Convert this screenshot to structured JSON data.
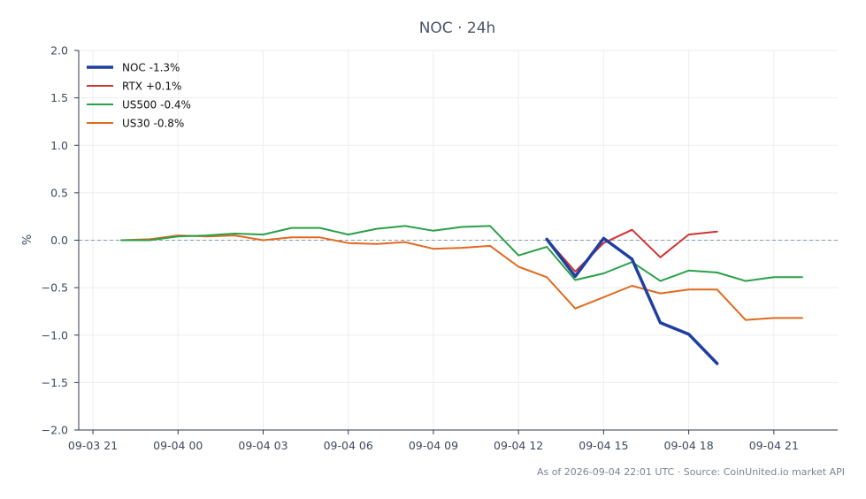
{
  "chart_data": {
    "type": "line",
    "title": "NOC · 24h",
    "ylabel": "%",
    "xlabel": "",
    "ylim": [
      -2.0,
      2.0
    ],
    "xlim": [
      "09-03 20:30",
      "09-04 23:15"
    ],
    "grid": true,
    "legend_position": "top-left",
    "zero_line": {
      "value": 0.0,
      "style": "dashed",
      "color": "#8a9ab0"
    },
    "y_ticks": [
      2.0,
      1.5,
      1.0,
      0.5,
      0.0,
      -0.5,
      -1.0,
      -1.5,
      -2.0
    ],
    "y_tick_labels": [
      "2.0",
      "1.5",
      "1.0",
      "0.5",
      "0.0",
      "−0.5",
      "−1.0",
      "−1.5",
      "−2.0"
    ],
    "x_ticks": [
      "09-03 21:00",
      "09-04 00:00",
      "09-04 03:00",
      "09-04 06:00",
      "09-04 09:00",
      "09-04 12:00",
      "09-04 15:00",
      "09-04 18:00",
      "09-04 21:00"
    ],
    "x_tick_labels": [
      "09-03 21",
      "09-04 00",
      "09-04 03",
      "09-04 06",
      "09-04 09",
      "09-04 12",
      "09-04 15",
      "09-04 18",
      "09-04 21"
    ],
    "series": [
      {
        "name": "NOC -1.3%",
        "color": "#1f3fa0",
        "width": 3.5,
        "x": [
          "09-04 13:00",
          "09-04 14:00",
          "09-04 15:00",
          "09-04 16:00",
          "09-04 17:00",
          "09-04 18:00",
          "09-04 19:00"
        ],
        "y": [
          0.01,
          -0.38,
          0.02,
          -0.2,
          -0.87,
          -0.99,
          -1.3
        ]
      },
      {
        "name": "RTX +0.1%",
        "color": "#d03232",
        "width": 2,
        "x": [
          "09-04 13:00",
          "09-04 14:00",
          "09-04 15:00",
          "09-04 16:00",
          "09-04 17:00",
          "09-04 18:00",
          "09-04 19:00"
        ],
        "y": [
          0.01,
          -0.33,
          -0.03,
          0.11,
          -0.18,
          0.06,
          0.09
        ]
      },
      {
        "name": "US500 -0.4%",
        "color": "#2aa048",
        "width": 2,
        "x": [
          "09-03 22:00",
          "09-03 23:00",
          "09-04 00:00",
          "09-04 01:00",
          "09-04 02:00",
          "09-04 03:00",
          "09-04 04:00",
          "09-04 05:00",
          "09-04 06:00",
          "09-04 07:00",
          "09-04 08:00",
          "09-04 09:00",
          "09-04 10:00",
          "09-04 11:00",
          "09-04 12:00",
          "09-04 13:00",
          "09-04 14:00",
          "09-04 15:00",
          "09-04 16:00",
          "09-04 17:00",
          "09-04 18:00",
          "09-04 19:00",
          "09-04 20:00",
          "09-04 21:00",
          "09-04 22:00"
        ],
        "y": [
          0.0,
          0.0,
          0.04,
          0.05,
          0.07,
          0.06,
          0.13,
          0.13,
          0.06,
          0.12,
          0.15,
          0.1,
          0.14,
          0.15,
          -0.16,
          -0.07,
          -0.42,
          -0.35,
          -0.23,
          -0.43,
          -0.32,
          -0.34,
          -0.43,
          -0.39,
          -0.39
        ]
      },
      {
        "name": "US30 -0.8%",
        "color": "#e06a20",
        "width": 2,
        "x": [
          "09-03 22:00",
          "09-03 23:00",
          "09-04 00:00",
          "09-04 01:00",
          "09-04 02:00",
          "09-04 03:00",
          "09-04 04:00",
          "09-04 05:00",
          "09-04 06:00",
          "09-04 07:00",
          "09-04 08:00",
          "09-04 09:00",
          "09-04 10:00",
          "09-04 11:00",
          "09-04 12:00",
          "09-04 13:00",
          "09-04 14:00",
          "09-04 15:00",
          "09-04 16:00",
          "09-04 17:00",
          "09-04 18:00",
          "09-04 19:00",
          "09-04 20:00",
          "09-04 21:00",
          "09-04 22:00"
        ],
        "y": [
          0.0,
          0.01,
          0.05,
          0.04,
          0.05,
          0.0,
          0.03,
          0.03,
          -0.03,
          -0.04,
          -0.02,
          -0.09,
          -0.08,
          -0.06,
          -0.28,
          -0.39,
          -0.72,
          -0.6,
          -0.48,
          -0.56,
          -0.52,
          -0.52,
          -0.84,
          -0.82,
          -0.82
        ]
      }
    ]
  },
  "footer": "As of 2026-09-04 22:01 UTC · Source: CoinUnited.io market API"
}
